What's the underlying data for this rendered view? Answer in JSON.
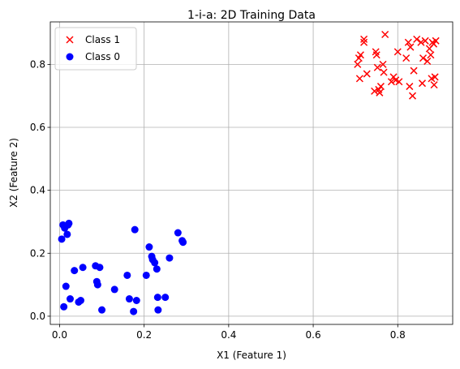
{
  "chart_data": {
    "type": "scatter",
    "title": "1-i-a: 2D Training Data",
    "xlabel": "X1 (Feature 1)",
    "ylabel": "X2 (Feature 2)",
    "xlim": [
      -0.022,
      0.93
    ],
    "ylim": [
      -0.026,
      0.935
    ],
    "xticks": [
      0.0,
      0.2,
      0.4,
      0.6,
      0.8
    ],
    "xtick_labels": [
      "0.0",
      "0.2",
      "0.4",
      "0.6",
      "0.8"
    ],
    "yticks": [
      0.0,
      0.2,
      0.4,
      0.6,
      0.8
    ],
    "ytick_labels": [
      "0.0",
      "0.2",
      "0.4",
      "0.6",
      "0.8"
    ],
    "grid": true,
    "legend_position": "upper-left",
    "series": [
      {
        "name": "Class 1",
        "marker": "x",
        "color": "#ff0000",
        "points": [
          [
            0.705,
            0.8
          ],
          [
            0.708,
            0.82
          ],
          [
            0.712,
            0.83
          ],
          [
            0.71,
            0.755
          ],
          [
            0.72,
            0.87
          ],
          [
            0.72,
            0.88
          ],
          [
            0.727,
            0.77
          ],
          [
            0.745,
            0.715
          ],
          [
            0.748,
            0.84
          ],
          [
            0.75,
            0.83
          ],
          [
            0.752,
            0.79
          ],
          [
            0.755,
            0.72
          ],
          [
            0.757,
            0.71
          ],
          [
            0.76,
            0.73
          ],
          [
            0.765,
            0.8
          ],
          [
            0.767,
            0.775
          ],
          [
            0.77,
            0.895
          ],
          [
            0.785,
            0.745
          ],
          [
            0.79,
            0.76
          ],
          [
            0.795,
            0.75
          ],
          [
            0.8,
            0.84
          ],
          [
            0.803,
            0.745
          ],
          [
            0.82,
            0.82
          ],
          [
            0.825,
            0.87
          ],
          [
            0.828,
            0.73
          ],
          [
            0.83,
            0.855
          ],
          [
            0.835,
            0.7
          ],
          [
            0.838,
            0.78
          ],
          [
            0.845,
            0.88
          ],
          [
            0.855,
            0.87
          ],
          [
            0.858,
            0.74
          ],
          [
            0.86,
            0.82
          ],
          [
            0.865,
            0.875
          ],
          [
            0.87,
            0.81
          ],
          [
            0.875,
            0.85
          ],
          [
            0.878,
            0.83
          ],
          [
            0.88,
            0.755
          ],
          [
            0.882,
            0.87
          ],
          [
            0.885,
            0.865
          ],
          [
            0.886,
            0.735
          ],
          [
            0.888,
            0.76
          ],
          [
            0.89,
            0.875
          ]
        ]
      },
      {
        "name": "Class 0",
        "marker": "o",
        "color": "#0000ff",
        "points": [
          [
            0.005,
            0.245
          ],
          [
            0.008,
            0.29
          ],
          [
            0.01,
            0.03
          ],
          [
            0.012,
            0.28
          ],
          [
            0.015,
            0.095
          ],
          [
            0.018,
            0.26
          ],
          [
            0.02,
            0.29
          ],
          [
            0.022,
            0.295
          ],
          [
            0.025,
            0.055
          ],
          [
            0.035,
            0.145
          ],
          [
            0.045,
            0.045
          ],
          [
            0.05,
            0.05
          ],
          [
            0.055,
            0.155
          ],
          [
            0.085,
            0.16
          ],
          [
            0.088,
            0.11
          ],
          [
            0.09,
            0.1
          ],
          [
            0.095,
            0.155
          ],
          [
            0.1,
            0.02
          ],
          [
            0.13,
            0.085
          ],
          [
            0.16,
            0.13
          ],
          [
            0.165,
            0.055
          ],
          [
            0.175,
            0.015
          ],
          [
            0.178,
            0.275
          ],
          [
            0.182,
            0.05
          ],
          [
            0.205,
            0.13
          ],
          [
            0.212,
            0.22
          ],
          [
            0.218,
            0.19
          ],
          [
            0.22,
            0.18
          ],
          [
            0.225,
            0.17
          ],
          [
            0.23,
            0.15
          ],
          [
            0.232,
            0.06
          ],
          [
            0.233,
            0.02
          ],
          [
            0.25,
            0.06
          ],
          [
            0.26,
            0.185
          ],
          [
            0.28,
            0.265
          ],
          [
            0.29,
            0.24
          ],
          [
            0.292,
            0.235
          ]
        ]
      }
    ]
  }
}
